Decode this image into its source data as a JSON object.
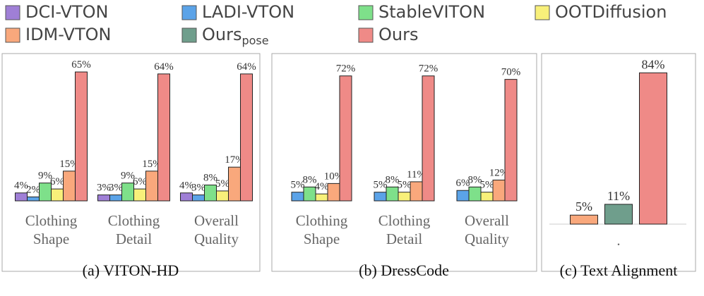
{
  "legend": [
    {
      "name": "DCI-VTON",
      "color": "#9f7fd6"
    },
    {
      "name": "LADI-VTON",
      "color": "#5ba3e8"
    },
    {
      "name": "StableVITON",
      "color": "#7ee08a"
    },
    {
      "name": "OOTDiffusion",
      "color": "#f8f07a"
    },
    {
      "name": "IDM-VTON",
      "color": "#f9a87c"
    },
    {
      "name": "Ours",
      "subscript": "pose",
      "color": "#6f9e8c"
    },
    {
      "name": "Ours",
      "color": "#ef8a87"
    }
  ],
  "chart_data": [
    {
      "type": "bar",
      "title": "(a) VITON-HD",
      "ylim": [
        0,
        70
      ],
      "categories": [
        "Clothing Shape",
        "Clothing Detail",
        "Overall Quality"
      ],
      "series": [
        {
          "color": "#9f7fd6",
          "values": [
            4,
            3,
            4
          ],
          "value_labels": [
            "4%",
            "3%",
            "4%"
          ]
        },
        {
          "color": "#5ba3e8",
          "values": [
            2,
            3,
            3
          ],
          "value_labels": [
            "2%",
            "3%",
            "3%"
          ]
        },
        {
          "color": "#7ee08a",
          "values": [
            9,
            9,
            8
          ],
          "value_labels": [
            "9%",
            "9%",
            "8%"
          ]
        },
        {
          "color": "#f8f07a",
          "values": [
            6,
            6,
            5
          ],
          "value_labels": [
            "6%",
            "6%",
            "5%"
          ]
        },
        {
          "color": "#f9a87c",
          "values": [
            15,
            15,
            17
          ],
          "value_labels": [
            "15%",
            "15%",
            "17%"
          ]
        },
        {
          "color": "#ef8a87",
          "values": [
            65,
            64,
            64
          ],
          "value_labels": [
            "65%",
            "64%",
            "64%"
          ]
        }
      ]
    },
    {
      "type": "bar",
      "title": "(b) DressCode",
      "ylim": [
        0,
        80
      ],
      "categories": [
        "Clothing Shape",
        "Clothing Detail",
        "Overall Quality"
      ],
      "series": [
        {
          "color": "#5ba3e8",
          "values": [
            5,
            5,
            6
          ],
          "value_labels": [
            "5%",
            "5%",
            "6%"
          ]
        },
        {
          "color": "#7ee08a",
          "values": [
            8,
            8,
            8
          ],
          "value_labels": [
            "8%",
            "8%",
            "8%"
          ]
        },
        {
          "color": "#f8f07a",
          "values": [
            4,
            5,
            5
          ],
          "value_labels": [
            "4%",
            "5%",
            "5%"
          ]
        },
        {
          "color": "#f9a87c",
          "values": [
            10,
            11,
            12
          ],
          "value_labels": [
            "10%",
            "11%",
            "12%"
          ]
        },
        {
          "color": "#ef8a87",
          "values": [
            72,
            72,
            70
          ],
          "value_labels": [
            "72%",
            "72%",
            "70%"
          ]
        }
      ]
    },
    {
      "type": "bar",
      "title": "(c) Text Alignment",
      "ylim": [
        0,
        90
      ],
      "categories": [
        "."
      ],
      "series": [
        {
          "color": "#f9a87c",
          "values": [
            5
          ],
          "value_labels": [
            "5%"
          ]
        },
        {
          "color": "#6f9e8c",
          "values": [
            11
          ],
          "value_labels": [
            "11%"
          ]
        },
        {
          "color": "#ef8a87",
          "values": [
            84
          ],
          "value_labels": [
            "84%"
          ]
        }
      ]
    }
  ]
}
